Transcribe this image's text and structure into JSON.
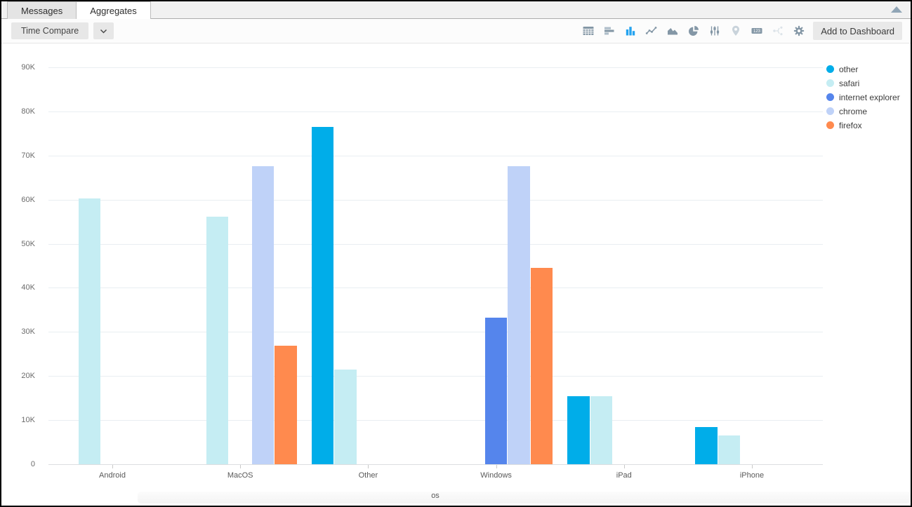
{
  "tabs": [
    {
      "label": "Messages",
      "active": false
    },
    {
      "label": "Aggregates",
      "active": true
    }
  ],
  "toolbar": {
    "time_compare_label": "Time Compare",
    "add_to_dashboard_label": "Add to Dashboard",
    "icons": [
      {
        "name": "table-icon",
        "state": "default"
      },
      {
        "name": "horizontal-bar-chart-icon",
        "state": "default"
      },
      {
        "name": "vertical-bar-chart-icon",
        "state": "active"
      },
      {
        "name": "line-chart-icon",
        "state": "default"
      },
      {
        "name": "area-chart-icon",
        "state": "default"
      },
      {
        "name": "pie-chart-icon",
        "state": "default"
      },
      {
        "name": "sliders-icon",
        "state": "default"
      },
      {
        "name": "map-pin-icon",
        "state": "disabled"
      },
      {
        "name": "number-123-icon",
        "state": "default"
      },
      {
        "name": "branch-icon",
        "state": "faint"
      },
      {
        "name": "gear-icon",
        "state": "default"
      }
    ]
  },
  "window_controls": {
    "collapse_icon": "triangle-up"
  },
  "chart_data": {
    "type": "bar",
    "title": "",
    "xlabel": "os",
    "ylabel": "",
    "ylim": [
      0,
      90000
    ],
    "grid": true,
    "legend_position": "top-right",
    "ytick_labels": [
      "0",
      "10K",
      "20K",
      "30K",
      "40K",
      "50K",
      "60K",
      "70K",
      "80K",
      "90K"
    ],
    "categories": [
      "Android",
      "MacOS",
      "Other",
      "Windows",
      "iPad",
      "iPhone"
    ],
    "series": [
      {
        "name": "other",
        "color": "#00ADE9",
        "values": [
          null,
          null,
          76500,
          null,
          15400,
          8500
        ]
      },
      {
        "name": "safari",
        "color": "#C5EDF3",
        "values": [
          60300,
          56100,
          21500,
          null,
          15400,
          6600
        ]
      },
      {
        "name": "internet explorer",
        "color": "#5585EC",
        "values": [
          null,
          null,
          null,
          33200,
          null,
          null
        ]
      },
      {
        "name": "chrome",
        "color": "#BFD2F8",
        "values": [
          null,
          67600,
          null,
          67600,
          null,
          null
        ]
      },
      {
        "name": "firefox",
        "color": "#FF8A4E",
        "values": [
          null,
          26900,
          null,
          44500,
          null,
          null
        ]
      }
    ]
  }
}
